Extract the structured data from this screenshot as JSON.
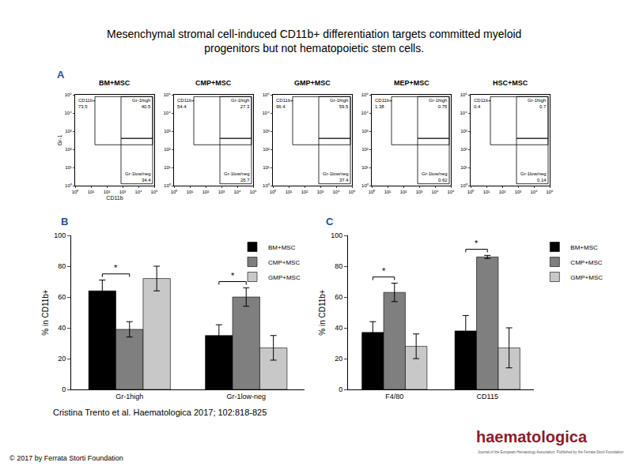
{
  "header": {
    "title_lines": [
      "Mesenchymal stromal cell-induced CD11b+ differentiation targets committed myeloid",
      "progenitors but not hematopoietic stem cells."
    ]
  },
  "panel_a": {
    "label": "A",
    "x_label": "CD11b",
    "y_label": "Gr-1",
    "range": [
      1,
      100000
    ],
    "ticks": [
      {
        "value": 1,
        "label": "10⁰"
      },
      {
        "value": 10,
        "label": "10¹"
      },
      {
        "value": 100,
        "label": "10²"
      },
      {
        "value": 1000,
        "label": "10³"
      },
      {
        "value": 10000,
        "label": "10⁴"
      },
      {
        "value": 100000,
        "label": "10⁵"
      }
    ],
    "plots": [
      {
        "title": "BM+MSC",
        "gates": [
          {
            "name": "CD11b+",
            "value": 73.5
          },
          {
            "name": "Gr-1high",
            "value": 40.5
          },
          {
            "name": "Gr-1low/neg",
            "value": 34.4
          }
        ]
      },
      {
        "title": "CMP+MSC",
        "gates": [
          {
            "name": "CD11b+",
            "value": 54.4
          },
          {
            "name": "Gr-1high",
            "value": 27.3
          },
          {
            "name": "Gr-1low/neg",
            "value": 26.7
          }
        ]
      },
      {
        "title": "GMP+MSC",
        "gates": [
          {
            "name": "CD11b+",
            "value": 96.4
          },
          {
            "name": "Gr-1high",
            "value": 59.5
          },
          {
            "name": "Gr-1low/neg",
            "value": 37.4
          }
        ]
      },
      {
        "title": "MEP+MSC",
        "gates": [
          {
            "name": "CD11b+",
            "value": 1.38
          },
          {
            "name": "Gr-1high",
            "value": 0.75
          },
          {
            "name": "Gr-1low/neg",
            "value": 0.62
          }
        ]
      },
      {
        "title": "HSC+MSC",
        "gates": [
          {
            "name": "CD11b+",
            "value": 0.4
          },
          {
            "name": "Gr-1high",
            "value": 0.7
          },
          {
            "name": "Gr-1low/neg",
            "value": 0.14
          }
        ]
      }
    ]
  },
  "chart_data": [
    {
      "type": "bar",
      "panel": "B",
      "y_label": "% in CD11b+",
      "categories": [
        "Gr-1high",
        "Gr-1low-neg"
      ],
      "series": [
        {
          "name": "BM+MSC",
          "color": "#000000",
          "values": [
            64,
            35
          ],
          "errors": [
            7,
            7
          ]
        },
        {
          "name": "CMP+MSC",
          "color": "#7f7f7f",
          "values": [
            39,
            60
          ],
          "errors": [
            5,
            6
          ]
        },
        {
          "name": "GMP+MSC",
          "color": "#c8c8c8",
          "values": [
            72,
            27
          ],
          "errors": [
            8,
            8
          ]
        }
      ],
      "ylim": [
        0,
        100
      ],
      "yticks": [
        0,
        20,
        40,
        60,
        80,
        100
      ],
      "grid": false,
      "legend": "top right",
      "annotations": [
        {
          "text": "*",
          "category": "Gr-1high",
          "between": [
            "BM+MSC",
            "CMP+MSC"
          ]
        },
        {
          "text": "*",
          "category": "Gr-1low-neg",
          "between": [
            "BM+MSC",
            "CMP+MSC"
          ]
        }
      ]
    },
    {
      "type": "bar",
      "panel": "C",
      "y_label": "% in CD11b+",
      "categories": [
        "F4/80",
        "CD115"
      ],
      "series": [
        {
          "name": "BM+MSC",
          "color": "#000000",
          "values": [
            37,
            38
          ],
          "errors": [
            7,
            10
          ]
        },
        {
          "name": "CMP+MSC",
          "color": "#7f7f7f",
          "values": [
            63,
            86
          ],
          "errors": [
            6,
            1
          ]
        },
        {
          "name": "GMP+MSC",
          "color": "#c8c8c8",
          "values": [
            28,
            27
          ],
          "errors": [
            8,
            13
          ]
        }
      ],
      "ylim": [
        0,
        100
      ],
      "yticks": [
        0,
        20,
        40,
        60,
        80,
        100
      ],
      "grid": false,
      "legend": "right",
      "annotations": [
        {
          "text": "*",
          "category": "F4/80",
          "between": [
            "BM+MSC",
            "CMP+MSC"
          ]
        },
        {
          "text": "*",
          "category": "CD115",
          "between": [
            "BM+MSC",
            "CMP+MSC"
          ]
        }
      ]
    }
  ],
  "footer": {
    "citation": "Cristina Trento et al. Haematologica 2017; 102:818-825",
    "copyright": "© 2017 by Ferrata Storti Foundation",
    "logo": "haematologica",
    "logo_subtitle": "Journal of the European Hematology Association. Published by the Ferrata Storti Foundation"
  }
}
